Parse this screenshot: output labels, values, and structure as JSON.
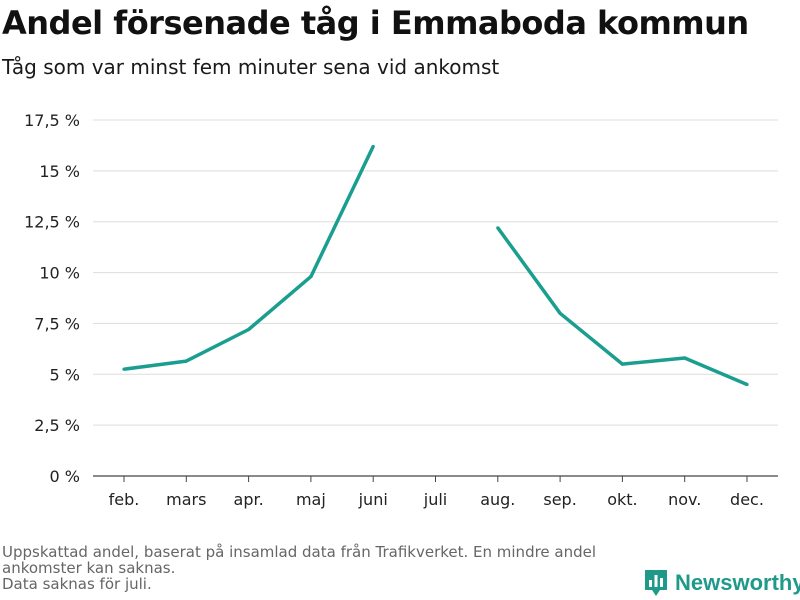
{
  "title": "Andel försenade tåg i Emmaboda kommun",
  "subtitle": "Tåg som var minst fem minuter sena vid ankomst",
  "footnote": {
    "line1": "Uppskattad andel, baserat på insamlad data från Trafikverket. En mindre andel ankomster kan saknas.",
    "line2": "Data saknas för juli."
  },
  "brand": {
    "name": "Newsworthy",
    "icon": "bar-chart-icon",
    "color": "#1f9a8a"
  },
  "chart_data": {
    "type": "line",
    "categories": [
      "feb.",
      "mars",
      "apr.",
      "maj",
      "juni",
      "juli",
      "aug.",
      "sep.",
      "okt.",
      "nov.",
      "dec."
    ],
    "series": [
      {
        "values": [
          5.25,
          5.65,
          7.2,
          9.8,
          16.2,
          null,
          12.2,
          8.0,
          5.5,
          5.8,
          4.5
        ]
      }
    ],
    "yticks": [
      0,
      2.5,
      5,
      7.5,
      10,
      12.5,
      15,
      17.5
    ],
    "ytick_labels": [
      "0 %",
      "2,5 %",
      "5 %",
      "7,5 %",
      "10 %",
      "12,5 %",
      "15 %",
      "17,5 %"
    ],
    "ylim": [
      0,
      17.5
    ],
    "xlabel": "",
    "ylabel": "",
    "grid": true,
    "line_color": "#1a9e90"
  }
}
